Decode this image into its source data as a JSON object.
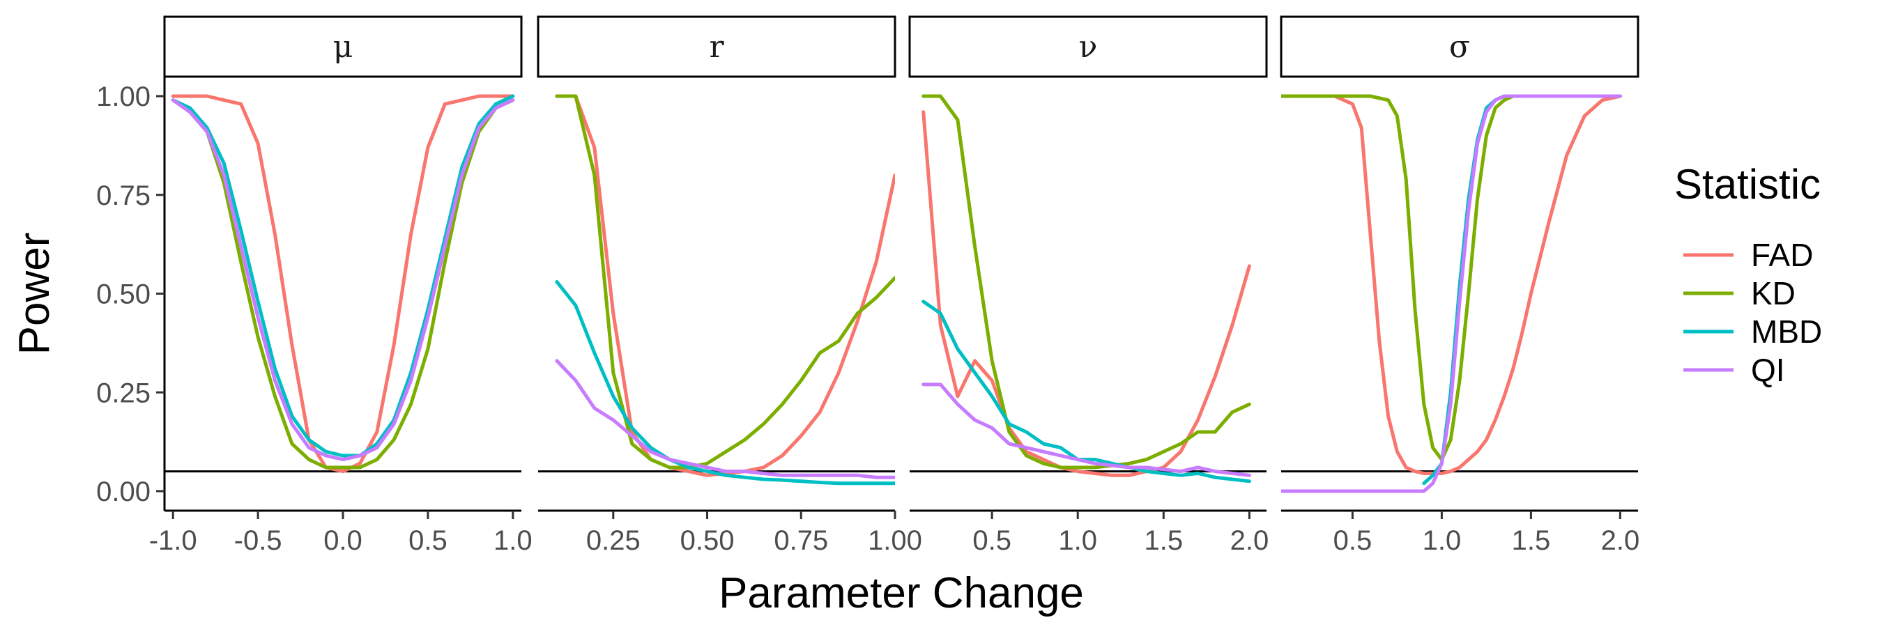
{
  "chart_data": {
    "type": "line",
    "xlabel": "Parameter Change",
    "ylabel": "Power",
    "ylim": [
      0,
      1
    ],
    "y_ticks": [
      "0.00",
      "0.25",
      "0.50",
      "0.75",
      "1.00"
    ],
    "reference_line": 0.05,
    "legend": {
      "title": "Statistic",
      "placement": "right",
      "entries": [
        {
          "name": "FAD",
          "color": "#F8766D"
        },
        {
          "name": "KD",
          "color": "#7CAE00"
        },
        {
          "name": "MBD",
          "color": "#00BFC4"
        },
        {
          "name": "QI",
          "color": "#C77CFF"
        }
      ]
    },
    "panels": [
      {
        "label": "μ",
        "xlim": [
          -1.05,
          1.05
        ],
        "x_ticks": [
          -1.0,
          -0.5,
          0.0,
          0.5,
          1.0
        ],
        "x_tick_labels": [
          "-1.0",
          "-0.5",
          "0.0",
          "0.5",
          "1.0"
        ],
        "series": [
          {
            "name": "FAD",
            "x": [
              -1.0,
              -0.9,
              -0.8,
              -0.7,
              -0.6,
              -0.5,
              -0.4,
              -0.3,
              -0.2,
              -0.1,
              0.0,
              0.1,
              0.2,
              0.3,
              0.4,
              0.5,
              0.6,
              0.7,
              0.8,
              0.9,
              1.0
            ],
            "y": [
              1.0,
              1.0,
              1.0,
              0.99,
              0.98,
              0.88,
              0.65,
              0.37,
              0.13,
              0.06,
              0.05,
              0.07,
              0.15,
              0.37,
              0.65,
              0.87,
              0.98,
              0.99,
              1.0,
              1.0,
              1.0
            ]
          },
          {
            "name": "KD",
            "x": [
              -1.0,
              -0.9,
              -0.8,
              -0.7,
              -0.6,
              -0.5,
              -0.4,
              -0.3,
              -0.2,
              -0.1,
              0.0,
              0.1,
              0.2,
              0.3,
              0.4,
              0.5,
              0.6,
              0.7,
              0.8,
              0.9,
              1.0
            ],
            "y": [
              0.99,
              0.96,
              0.91,
              0.78,
              0.58,
              0.39,
              0.24,
              0.12,
              0.08,
              0.06,
              0.06,
              0.06,
              0.08,
              0.13,
              0.22,
              0.36,
              0.58,
              0.78,
              0.91,
              0.97,
              0.99
            ]
          },
          {
            "name": "MBD",
            "x": [
              -1.0,
              -0.9,
              -0.8,
              -0.7,
              -0.6,
              -0.5,
              -0.4,
              -0.3,
              -0.2,
              -0.1,
              0.0,
              0.1,
              0.2,
              0.3,
              0.4,
              0.5,
              0.6,
              0.7,
              0.8,
              0.9,
              1.0
            ],
            "y": [
              0.99,
              0.97,
              0.92,
              0.83,
              0.66,
              0.48,
              0.31,
              0.19,
              0.13,
              0.1,
              0.09,
              0.09,
              0.12,
              0.18,
              0.3,
              0.46,
              0.64,
              0.82,
              0.93,
              0.98,
              1.0
            ]
          },
          {
            "name": "QI",
            "x": [
              -1.0,
              -0.9,
              -0.8,
              -0.7,
              -0.6,
              -0.5,
              -0.4,
              -0.3,
              -0.2,
              -0.1,
              0.0,
              0.1,
              0.2,
              0.3,
              0.4,
              0.5,
              0.6,
              0.7,
              0.8,
              0.9,
              1.0
            ],
            "y": [
              0.99,
              0.96,
              0.91,
              0.8,
              0.62,
              0.44,
              0.28,
              0.17,
              0.11,
              0.09,
              0.08,
              0.09,
              0.11,
              0.17,
              0.28,
              0.44,
              0.62,
              0.8,
              0.92,
              0.97,
              0.99
            ]
          }
        ]
      },
      {
        "label": "r",
        "xlim": [
          0.05,
          1.0
        ],
        "x_ticks": [
          0.25,
          0.5,
          0.75,
          1.0
        ],
        "x_tick_labels": [
          "0.25",
          "0.50",
          "0.75",
          "1.00"
        ],
        "series": [
          {
            "name": "FAD",
            "x": [
              0.1,
              0.15,
              0.2,
              0.25,
              0.3,
              0.35,
              0.4,
              0.45,
              0.5,
              0.55,
              0.6,
              0.65,
              0.7,
              0.75,
              0.8,
              0.85,
              0.9,
              0.95,
              1.0
            ],
            "y": [
              1.0,
              1.0,
              0.87,
              0.45,
              0.15,
              0.08,
              0.06,
              0.05,
              0.04,
              0.045,
              0.05,
              0.06,
              0.09,
              0.14,
              0.2,
              0.3,
              0.43,
              0.58,
              0.8
            ]
          },
          {
            "name": "KD",
            "x": [
              0.1,
              0.15,
              0.2,
              0.25,
              0.3,
              0.35,
              0.4,
              0.45,
              0.5,
              0.55,
              0.6,
              0.65,
              0.7,
              0.75,
              0.8,
              0.85,
              0.9,
              0.95,
              1.0
            ],
            "y": [
              1.0,
              1.0,
              0.8,
              0.3,
              0.12,
              0.08,
              0.06,
              0.06,
              0.07,
              0.1,
              0.13,
              0.17,
              0.22,
              0.28,
              0.35,
              0.38,
              0.45,
              0.49,
              0.54
            ]
          },
          {
            "name": "MBD",
            "x": [
              0.1,
              0.15,
              0.2,
              0.25,
              0.3,
              0.35,
              0.4,
              0.45,
              0.5,
              0.55,
              0.6,
              0.65,
              0.7,
              0.75,
              0.8,
              0.85,
              0.9,
              0.95,
              1.0
            ],
            "y": [
              0.53,
              0.47,
              0.35,
              0.24,
              0.16,
              0.11,
              0.08,
              0.06,
              0.05,
              0.04,
              0.035,
              0.03,
              0.028,
              0.025,
              0.022,
              0.02,
              0.02,
              0.02,
              0.02
            ]
          },
          {
            "name": "QI",
            "x": [
              0.1,
              0.15,
              0.2,
              0.25,
              0.3,
              0.35,
              0.4,
              0.45,
              0.5,
              0.55,
              0.6,
              0.65,
              0.7,
              0.75,
              0.8,
              0.85,
              0.9,
              0.95,
              1.0
            ],
            "y": [
              0.33,
              0.28,
              0.21,
              0.18,
              0.14,
              0.1,
              0.08,
              0.07,
              0.06,
              0.05,
              0.05,
              0.045,
              0.04,
              0.04,
              0.04,
              0.04,
              0.04,
              0.035,
              0.035
            ]
          }
        ]
      },
      {
        "label": "ν",
        "xlim": [
          0.02,
          2.1
        ],
        "x_ticks": [
          0.5,
          1.0,
          1.5,
          2.0
        ],
        "x_tick_labels": [
          "0.5",
          "1.0",
          "1.5",
          "2.0"
        ],
        "series": [
          {
            "name": "FAD",
            "x": [
              0.1,
              0.2,
              0.3,
              0.4,
              0.5,
              0.6,
              0.7,
              0.8,
              0.9,
              1.0,
              1.1,
              1.2,
              1.3,
              1.4,
              1.5,
              1.6,
              1.7,
              1.8,
              1.9,
              2.0
            ],
            "y": [
              0.96,
              0.42,
              0.24,
              0.33,
              0.28,
              0.16,
              0.1,
              0.08,
              0.06,
              0.05,
              0.045,
              0.04,
              0.04,
              0.05,
              0.06,
              0.1,
              0.18,
              0.29,
              0.42,
              0.57
            ]
          },
          {
            "name": "KD",
            "x": [
              0.1,
              0.2,
              0.3,
              0.4,
              0.5,
              0.6,
              0.7,
              0.8,
              0.9,
              1.0,
              1.1,
              1.2,
              1.3,
              1.4,
              1.5,
              1.6,
              1.7,
              1.8,
              1.9,
              2.0
            ],
            "y": [
              1.0,
              1.0,
              0.94,
              0.62,
              0.33,
              0.15,
              0.09,
              0.07,
              0.06,
              0.06,
              0.06,
              0.065,
              0.07,
              0.08,
              0.1,
              0.12,
              0.15,
              0.15,
              0.2,
              0.22
            ]
          },
          {
            "name": "MBD",
            "x": [
              0.1,
              0.2,
              0.3,
              0.4,
              0.5,
              0.6,
              0.7,
              0.8,
              0.9,
              1.0,
              1.1,
              1.2,
              1.3,
              1.4,
              1.5,
              1.6,
              1.7,
              1.8,
              1.9,
              2.0
            ],
            "y": [
              0.48,
              0.45,
              0.36,
              0.3,
              0.24,
              0.17,
              0.15,
              0.12,
              0.11,
              0.08,
              0.08,
              0.07,
              0.06,
              0.05,
              0.045,
              0.04,
              0.045,
              0.035,
              0.03,
              0.025
            ]
          },
          {
            "name": "QI",
            "x": [
              0.1,
              0.2,
              0.3,
              0.4,
              0.5,
              0.6,
              0.7,
              0.8,
              0.9,
              1.0,
              1.1,
              1.2,
              1.3,
              1.4,
              1.5,
              1.6,
              1.7,
              1.8,
              1.9,
              2.0
            ],
            "y": [
              0.27,
              0.27,
              0.22,
              0.18,
              0.16,
              0.12,
              0.11,
              0.1,
              0.09,
              0.08,
              0.07,
              0.065,
              0.06,
              0.06,
              0.055,
              0.05,
              0.06,
              0.05,
              0.045,
              0.04
            ]
          }
        ]
      },
      {
        "label": "σ",
        "xlim": [
          0.1,
          2.1
        ],
        "x_ticks": [
          0.5,
          1.0,
          1.5,
          2.0
        ],
        "x_tick_labels": [
          "0.5",
          "1.0",
          "1.5",
          "2.0"
        ],
        "series": [
          {
            "name": "FAD",
            "x": [
              0.1,
              0.2,
              0.3,
              0.4,
              0.5,
              0.55,
              0.6,
              0.65,
              0.7,
              0.75,
              0.8,
              0.85,
              0.9,
              0.95,
              1.0,
              1.05,
              1.1,
              1.15,
              1.2,
              1.25,
              1.3,
              1.35,
              1.4,
              1.45,
              1.5,
              1.6,
              1.7,
              1.8,
              1.9,
              2.0
            ],
            "y": [
              1.0,
              1.0,
              1.0,
              1.0,
              0.98,
              0.92,
              0.65,
              0.38,
              0.19,
              0.1,
              0.06,
              0.05,
              0.045,
              0.045,
              0.045,
              0.05,
              0.06,
              0.08,
              0.1,
              0.13,
              0.18,
              0.24,
              0.31,
              0.4,
              0.5,
              0.68,
              0.85,
              0.95,
              0.99,
              1.0
            ]
          },
          {
            "name": "KD",
            "x": [
              0.1,
              0.2,
              0.3,
              0.4,
              0.5,
              0.6,
              0.7,
              0.75,
              0.8,
              0.85,
              0.9,
              0.95,
              1.0,
              1.05,
              1.1,
              1.15,
              1.2,
              1.25,
              1.3,
              1.35,
              1.4,
              1.5,
              1.6,
              1.7,
              1.8,
              1.9,
              2.0
            ],
            "y": [
              1.0,
              1.0,
              1.0,
              1.0,
              1.0,
              1.0,
              0.99,
              0.95,
              0.79,
              0.46,
              0.22,
              0.11,
              0.08,
              0.13,
              0.28,
              0.5,
              0.74,
              0.9,
              0.97,
              0.99,
              1.0,
              1.0,
              1.0,
              1.0,
              1.0,
              1.0,
              1.0
            ]
          },
          {
            "name": "MBD",
            "x": [
              0.9,
              0.95,
              1.0,
              1.05,
              1.1,
              1.15,
              1.2,
              1.25,
              1.3,
              1.35,
              1.4,
              1.5,
              1.6,
              1.7,
              1.8,
              1.9,
              2.0
            ],
            "y": [
              0.02,
              0.04,
              0.07,
              0.25,
              0.52,
              0.74,
              0.89,
              0.97,
              0.99,
              1.0,
              1.0,
              1.0,
              1.0,
              1.0,
              1.0,
              1.0,
              1.0
            ]
          },
          {
            "name": "QI",
            "x": [
              0.1,
              0.2,
              0.3,
              0.4,
              0.5,
              0.6,
              0.7,
              0.8,
              0.85,
              0.9,
              0.95,
              1.0,
              1.05,
              1.1,
              1.15,
              1.2,
              1.25,
              1.3,
              1.35,
              1.4,
              1.5,
              1.6,
              1.7,
              1.8,
              1.9,
              2.0
            ],
            "y": [
              0.0,
              0.0,
              0.0,
              0.0,
              0.0,
              0.0,
              0.0,
              0.0,
              0.0,
              0.0,
              0.02,
              0.07,
              0.22,
              0.48,
              0.71,
              0.88,
              0.96,
              0.99,
              1.0,
              1.0,
              1.0,
              1.0,
              1.0,
              1.0,
              1.0,
              1.0
            ]
          }
        ]
      }
    ]
  }
}
